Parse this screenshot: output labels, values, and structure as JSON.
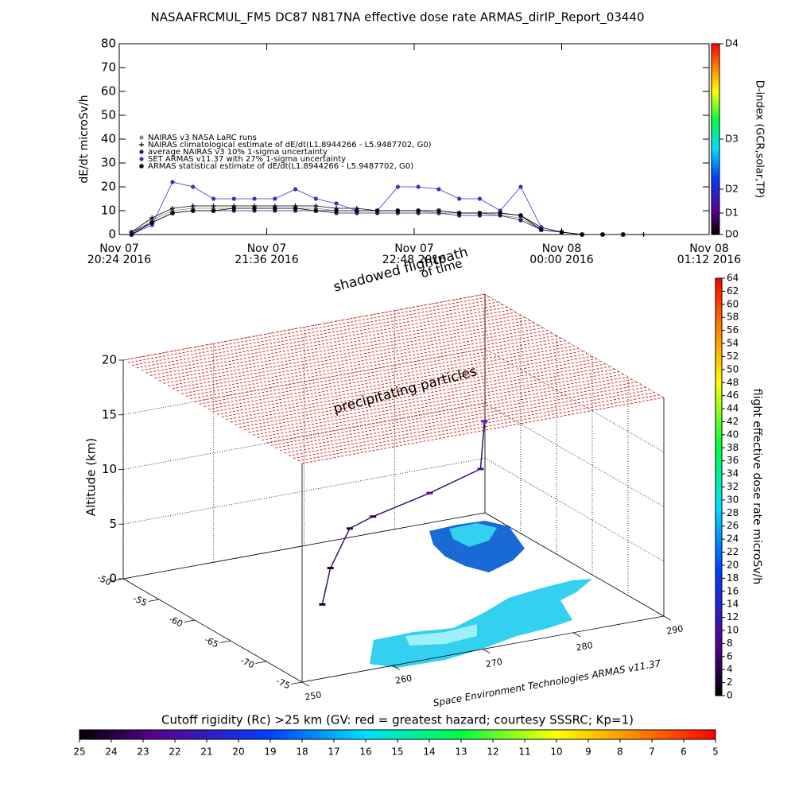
{
  "chart_data": [
    {
      "type": "line",
      "title": "NASAAFRCMUL_FM5 DC87 N817NA effective dose rate ARMAS_dirIP_Report_03440",
      "y_label": "dE/dt microSv/h",
      "ylim": [
        0,
        80
      ],
      "yticks": [
        0,
        10,
        20,
        30,
        40,
        50,
        60,
        70,
        80
      ],
      "xlim": [
        "2016-11-07T20:24",
        "2016-11-08T01:12"
      ],
      "xticks": [
        {
          "value": "2016-11-07T20:24",
          "label": [
            "Nov 07",
            "20:24 2016"
          ]
        },
        {
          "value": "2016-11-07T21:36",
          "label": [
            "Nov 07",
            "21:36 2016"
          ]
        },
        {
          "value": "2016-11-07T22:48",
          "label": [
            "Nov 07",
            "22:48 2016"
          ]
        },
        {
          "value": "2016-11-08T00:00",
          "label": [
            "Nov 08",
            "00:00 2016"
          ]
        },
        {
          "value": "2016-11-08T01:12",
          "label": [
            "Nov 08",
            "01:12 2016"
          ]
        }
      ],
      "x": [
        "2016-11-07T20:30",
        "2016-11-07T20:40",
        "2016-11-07T20:50",
        "2016-11-07T21:00",
        "2016-11-07T21:10",
        "2016-11-07T21:20",
        "2016-11-07T21:30",
        "2016-11-07T21:40",
        "2016-11-07T21:50",
        "2016-11-07T22:00",
        "2016-11-07T22:10",
        "2016-11-07T22:20",
        "2016-11-07T22:30",
        "2016-11-07T22:40",
        "2016-11-07T22:50",
        "2016-11-07T23:00",
        "2016-11-07T23:10",
        "2016-11-07T23:20",
        "2016-11-07T23:30",
        "2016-11-07T23:40",
        "2016-11-07T23:50",
        "2016-11-08T00:00",
        "2016-11-08T00:10",
        "2016-11-08T00:20",
        "2016-11-08T00:30",
        "2016-11-08T00:40",
        "2016-11-08T00:50"
      ],
      "series": [
        {
          "name": "NAIRAS v3 NASA LaRC runs",
          "color": "#888888",
          "marker": "circle",
          "values": [
            0,
            6,
            10,
            11,
            11,
            11,
            11,
            11,
            11,
            11,
            10,
            10,
            10,
            10,
            10,
            9,
            9,
            9,
            8,
            7,
            2,
            1,
            0,
            0,
            0,
            null,
            null
          ]
        },
        {
          "name": "NAIRAS climatological estimate of dE/dt(L1.8944266 - L5.9487702, G0)",
          "color": "#000000",
          "marker": "plus",
          "values": [
            1,
            7,
            11,
            12,
            12,
            12,
            12,
            12,
            12,
            12,
            11,
            11,
            10,
            10,
            10,
            10,
            9,
            9,
            9,
            8,
            3,
            1,
            0,
            0,
            0,
            0,
            null
          ]
        },
        {
          "name": "average NAIRAS v3 10% 1-sigma uncertainty",
          "color": "#3a1070",
          "marker": "circle",
          "values": [
            1,
            5,
            9,
            10,
            10,
            10,
            10,
            10,
            10,
            10,
            9,
            9,
            9,
            9,
            9,
            9,
            8,
            8,
            8,
            6,
            2,
            1,
            0,
            0,
            0,
            null,
            null
          ]
        },
        {
          "name": "SET ARMAS v11.37 with 27% 1-sigma uncertainty",
          "color": "#3333cc",
          "marker": "circle",
          "values": [
            0,
            4,
            22,
            20,
            15,
            15,
            15,
            15,
            19,
            15,
            13,
            10,
            10,
            20,
            20,
            19,
            15,
            15,
            10,
            20,
            3,
            1,
            0,
            0,
            null,
            null,
            null
          ]
        },
        {
          "name": "ARMAS statistical estimate of dE/dt(L1.8944266 - L5.9487702, G0)",
          "color": "#000000",
          "marker": "star",
          "values": [
            0,
            5,
            9,
            10,
            10,
            11,
            11,
            11,
            11,
            10,
            10,
            10,
            10,
            10,
            10,
            10,
            9,
            9,
            9,
            8,
            2,
            1,
            0,
            0,
            0,
            null,
            null
          ]
        }
      ],
      "colorbar": {
        "label": "D-index (GCR,solar,TP)",
        "lim": [
          0,
          80
        ],
        "ticks": [
          {
            "value": 0,
            "label": "D0"
          },
          {
            "value": 9,
            "label": "D1"
          },
          {
            "value": 19,
            "label": "D2"
          },
          {
            "value": 40,
            "label": "D3"
          },
          {
            "value": 80,
            "label": "D4"
          }
        ]
      }
    },
    {
      "type": "scatter3d",
      "z_label": "Altitude (km)",
      "xlim": [
        250,
        290
      ],
      "xticks": [
        250,
        260,
        270,
        280,
        290
      ],
      "ylim": [
        -50,
        -75
      ],
      "yticks": [
        -50,
        -55,
        -60,
        -65,
        -70,
        -75
      ],
      "zlim": [
        0,
        20
      ],
      "zticks": [
        0,
        5,
        10,
        15,
        20
      ],
      "annotations": [
        "shadowed flightpath",
        "of time",
        "precipitating particles",
        "Space Environment Technologies ARMAS v11.37"
      ],
      "track": {
        "lon": [
          262.2,
          265.0,
          268.4,
          270.5,
          275.5,
          280.1,
          281.0
        ],
        "lat": [
          -62.4,
          -60.0,
          -58.4,
          -59.0,
          -60.6,
          -61.9,
          -61.3
        ],
        "alt": [
          0.5,
          2.5,
          5,
          6,
          8,
          10,
          14
        ],
        "dose": [
          1,
          2,
          4,
          5,
          8,
          10,
          14
        ]
      },
      "colorbar": {
        "label": "flight effective dose rate microSv/h",
        "lim": [
          0,
          64
        ],
        "ticks": [
          0,
          2,
          4,
          6,
          8,
          10,
          12,
          14,
          16,
          18,
          20,
          22,
          24,
          26,
          28,
          30,
          32,
          34,
          36,
          38,
          40,
          42,
          44,
          46,
          48,
          50,
          52,
          54,
          56,
          58,
          60,
          62,
          64
        ]
      },
      "rigidity_colorbar": {
        "label": "Cutoff rigidity (Rc) >25 km (GV: red = greatest hazard; courtesy SSSRC; Kp=1)",
        "lim": [
          25,
          5
        ],
        "ticks": [
          25,
          24,
          23,
          22,
          21,
          20,
          19,
          18,
          17,
          16,
          15,
          14,
          13,
          12,
          11,
          10,
          9,
          8,
          7,
          6,
          5
        ]
      }
    }
  ]
}
